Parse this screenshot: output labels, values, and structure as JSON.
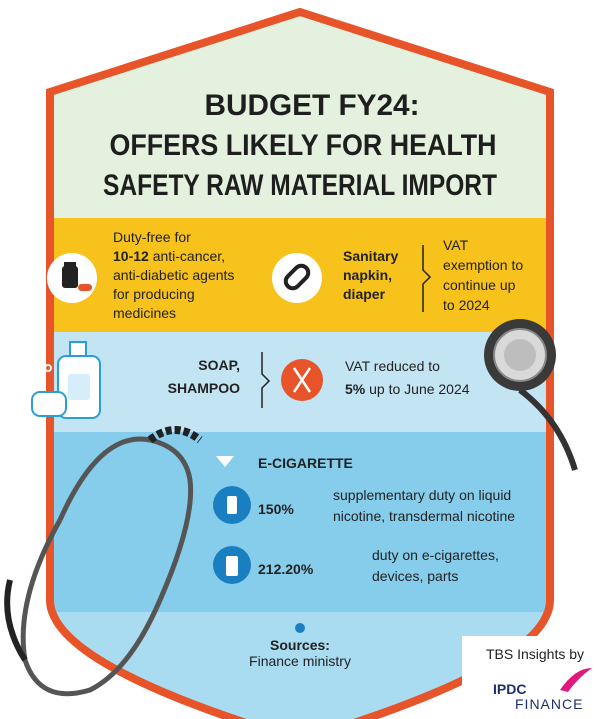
{
  "title": {
    "lines": [
      "BUDGET FY24:",
      "OFFERS LIKELY FOR HEALTH",
      "SAFETY RAW MATERIAL IMPORT"
    ]
  },
  "medicines": {
    "first": "Duty-free for",
    "highlight": "10-12",
    "highlight_rest": " anti-cancer,",
    "rest": [
      "anti-diabetic agents",
      "for producing",
      "medicines"
    ]
  },
  "sanitary": {
    "item": [
      "Sanitary",
      "napkin,",
      "diaper"
    ],
    "offer": [
      "VAT",
      "exemption to",
      "continue up",
      "to 2024"
    ]
  },
  "soap": {
    "item": [
      "SOAP,",
      "SHAMPOO"
    ],
    "offer_first": "VAT reduced to",
    "offer_highlight": "5%",
    "offer_rest": " up to June 2024"
  },
  "ecigarette": {
    "heading": "E-CIGARETTE",
    "rows": [
      {
        "rate": "150%",
        "text": [
          "supplementary duty on liquid",
          "nicotine, transdermal nicotine"
        ]
      },
      {
        "rate": "212.20%",
        "text": [
          "duty on e-cigarettes,",
          "devices, parts"
        ]
      }
    ]
  },
  "sources": {
    "label": "Sources:",
    "text": "Finance ministry"
  },
  "credit": {
    "text": "TBS Insights by",
    "logo": "IPDC",
    "logo_sub": "FINANCE"
  }
}
